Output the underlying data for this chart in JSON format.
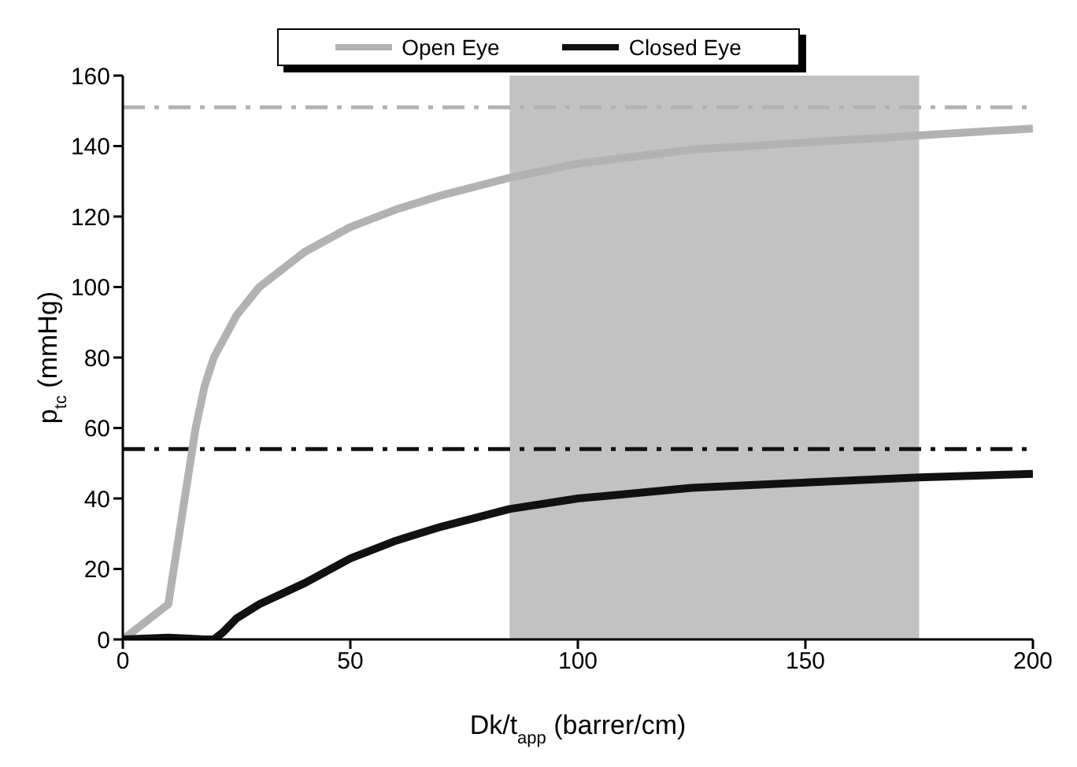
{
  "chart_data": {
    "type": "line",
    "xlabel": "Dk/t$_{app}$ (barrer/cm)",
    "ylabel": "p$_{tc}$ (mmHg)",
    "xlim": [
      0,
      200
    ],
    "xticks": [
      0,
      50,
      100,
      150,
      200
    ],
    "ylim": [
      0,
      160
    ],
    "yticks": [
      0,
      20,
      40,
      60,
      80,
      100,
      120,
      140,
      160
    ],
    "grid": false,
    "legend": "top",
    "marker": "none",
    "line_style": "solid",
    "series": [
      {
        "name": "Open Eye",
        "color": "#b2b2b2",
        "x": [
          0,
          10,
          13,
          16,
          18,
          20,
          25,
          30,
          40,
          50,
          60,
          70,
          85,
          100,
          125,
          150,
          175,
          200
        ],
        "values": [
          0,
          10,
          35,
          60,
          72,
          80,
          92,
          100,
          110,
          117,
          122,
          126,
          131,
          135,
          139,
          141,
          143,
          145
        ]
      },
      {
        "name": "Closed Eye",
        "color": "#111111",
        "x": [
          0,
          10,
          18,
          20,
          22,
          25,
          30,
          40,
          50,
          60,
          70,
          85,
          100,
          125,
          150,
          175,
          200
        ],
        "values": [
          0,
          0.5,
          0,
          0,
          2,
          6,
          10,
          16,
          23,
          28,
          32,
          37,
          40,
          43,
          44.5,
          46,
          47
        ]
      }
    ],
    "ref_lines": [
      {
        "axis": "y",
        "value": 151,
        "color": "#b2b2b2",
        "line_style": "dashdot"
      },
      {
        "axis": "y",
        "value": 54,
        "color": "#111111",
        "line_style": "dashdot"
      }
    ],
    "bands": [
      {
        "axis": "x",
        "from": 85,
        "to": 175,
        "color": "#9a9a9a"
      }
    ]
  }
}
